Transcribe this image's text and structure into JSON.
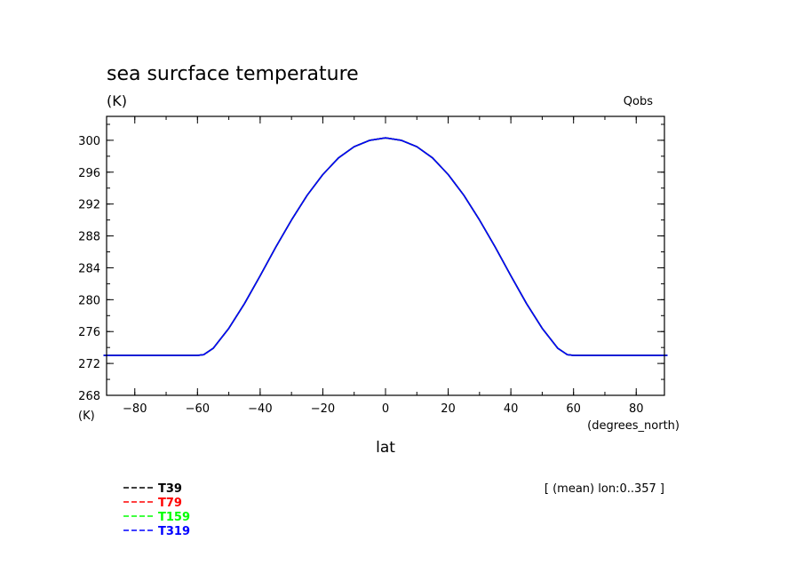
{
  "chart_data": {
    "type": "line",
    "title": "sea surcface temperature",
    "y_units": "(K)",
    "y_units_bottom": "(K)",
    "case_label": "Qobs",
    "xlabel": "lat",
    "x_units": "(degrees_north)",
    "footnote": "[ (mean) lon:0..357 ]",
    "xlim": [
      -89,
      89
    ],
    "ylim": [
      268,
      303
    ],
    "x_ticks": [
      -80,
      -60,
      -40,
      -20,
      0,
      20,
      40,
      60,
      80
    ],
    "x_tick_labels": [
      "−80",
      "−60",
      "−40",
      "−20",
      "0",
      "20",
      "40",
      "60",
      "80"
    ],
    "y_ticks": [
      268,
      272,
      276,
      280,
      284,
      288,
      292,
      296,
      300
    ],
    "y_tick_labels": [
      "268",
      "272",
      "276",
      "280",
      "284",
      "288",
      "292",
      "296",
      "300"
    ],
    "grid": false,
    "legend_position": "bottom-left",
    "x": [
      -90,
      -80,
      -70,
      -60,
      -58,
      -55,
      -50,
      -45,
      -40,
      -35,
      -30,
      -25,
      -20,
      -15,
      -10,
      -5,
      0,
      5,
      10,
      15,
      20,
      25,
      30,
      35,
      40,
      45,
      50,
      55,
      58,
      60,
      70,
      80,
      90
    ],
    "series": [
      {
        "name": "T39",
        "color": "#000000",
        "values": [
          273.0,
          273.0,
          273.0,
          273.0,
          273.1,
          273.9,
          276.4,
          279.5,
          283.0,
          286.6,
          290.0,
          293.1,
          295.7,
          297.8,
          299.2,
          300.0,
          300.3,
          300.0,
          299.2,
          297.8,
          295.7,
          293.1,
          290.0,
          286.6,
          283.0,
          279.5,
          276.4,
          273.9,
          273.1,
          273.0,
          273.0,
          273.0,
          273.0
        ]
      },
      {
        "name": "T79",
        "color": "#ff0000",
        "values": [
          273.0,
          273.0,
          273.0,
          273.0,
          273.1,
          273.9,
          276.4,
          279.5,
          283.0,
          286.6,
          290.0,
          293.1,
          295.7,
          297.8,
          299.2,
          300.0,
          300.3,
          300.0,
          299.2,
          297.8,
          295.7,
          293.1,
          290.0,
          286.6,
          283.0,
          279.5,
          276.4,
          273.9,
          273.1,
          273.0,
          273.0,
          273.0,
          273.0
        ]
      },
      {
        "name": "T159",
        "color": "#00ff00",
        "values": [
          273.0,
          273.0,
          273.0,
          273.0,
          273.1,
          273.9,
          276.4,
          279.5,
          283.0,
          286.6,
          290.0,
          293.1,
          295.7,
          297.8,
          299.2,
          300.0,
          300.3,
          300.0,
          299.2,
          297.8,
          295.7,
          293.1,
          290.0,
          286.6,
          283.0,
          279.5,
          276.4,
          273.9,
          273.1,
          273.0,
          273.0,
          273.0,
          273.0
        ]
      },
      {
        "name": "T319",
        "color": "#0000ff",
        "values": [
          273.0,
          273.0,
          273.0,
          273.0,
          273.1,
          273.9,
          276.4,
          279.5,
          283.0,
          286.6,
          290.0,
          293.1,
          295.7,
          297.8,
          299.2,
          300.0,
          300.3,
          300.0,
          299.2,
          297.8,
          295.7,
          293.1,
          290.0,
          286.6,
          283.0,
          279.5,
          276.4,
          273.9,
          273.1,
          273.0,
          273.0,
          273.0,
          273.0
        ]
      }
    ]
  }
}
